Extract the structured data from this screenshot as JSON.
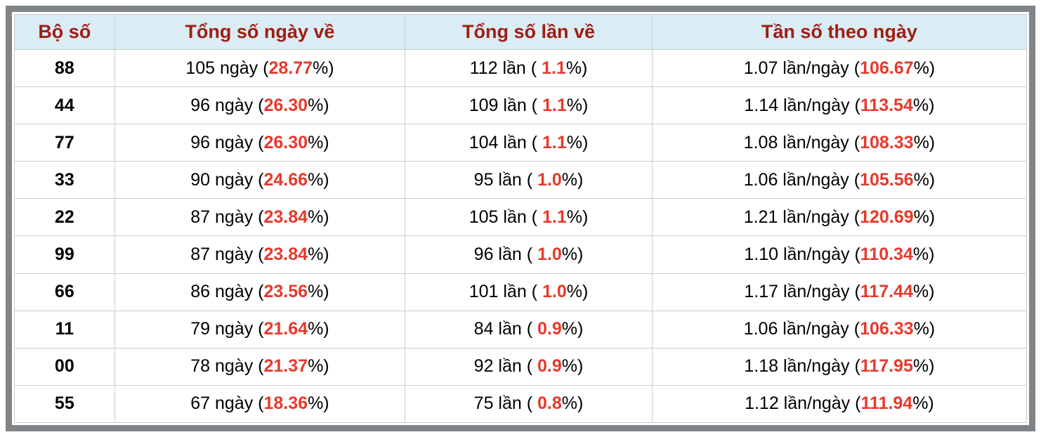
{
  "colors": {
    "frame_border": "#818487",
    "header_bg": "#daecf4",
    "header_text": "#9e1e12",
    "highlight_red": "#e8392b",
    "cell_border": "#cccccc"
  },
  "table": {
    "headers": [
      "Bộ số",
      "Tổng số ngày về",
      "Tổng số lần về",
      "Tần số theo ngày"
    ],
    "rows": [
      {
        "pair": "88",
        "days": {
          "pre": "105 ngày (",
          "red": "28.77",
          "post": "%)"
        },
        "times": {
          "pre": "112 lần ( ",
          "red": "1.1",
          "post": "%)"
        },
        "freq": {
          "pre": "1.07 lần/ngày (",
          "red": "106.67",
          "post": "%)"
        }
      },
      {
        "pair": "44",
        "days": {
          "pre": "96 ngày (",
          "red": "26.30",
          "post": "%)"
        },
        "times": {
          "pre": "109 lần ( ",
          "red": "1.1",
          "post": "%)"
        },
        "freq": {
          "pre": "1.14 lần/ngày (",
          "red": "113.54",
          "post": "%)"
        }
      },
      {
        "pair": "77",
        "days": {
          "pre": "96 ngày (",
          "red": "26.30",
          "post": "%)"
        },
        "times": {
          "pre": "104 lần ( ",
          "red": "1.1",
          "post": "%)"
        },
        "freq": {
          "pre": "1.08 lần/ngày (",
          "red": "108.33",
          "post": "%)"
        }
      },
      {
        "pair": "33",
        "days": {
          "pre": "90 ngày (",
          "red": "24.66",
          "post": "%)"
        },
        "times": {
          "pre": "95 lần ( ",
          "red": "1.0",
          "post": "%)"
        },
        "freq": {
          "pre": "1.06 lần/ngày (",
          "red": "105.56",
          "post": "%)"
        }
      },
      {
        "pair": "22",
        "days": {
          "pre": "87 ngày (",
          "red": "23.84",
          "post": "%)"
        },
        "times": {
          "pre": "105 lần ( ",
          "red": "1.1",
          "post": "%)"
        },
        "freq": {
          "pre": "1.21 lần/ngày (",
          "red": "120.69",
          "post": "%)"
        }
      },
      {
        "pair": "99",
        "days": {
          "pre": "87 ngày (",
          "red": "23.84",
          "post": "%)"
        },
        "times": {
          "pre": "96 lần ( ",
          "red": "1.0",
          "post": "%)"
        },
        "freq": {
          "pre": "1.10 lần/ngày (",
          "red": "110.34",
          "post": "%)"
        }
      },
      {
        "pair": "66",
        "days": {
          "pre": "86 ngày (",
          "red": "23.56",
          "post": "%)"
        },
        "times": {
          "pre": "101 lần ( ",
          "red": "1.0",
          "post": "%)"
        },
        "freq": {
          "pre": "1.17 lần/ngày (",
          "red": "117.44",
          "post": "%)"
        }
      },
      {
        "pair": "11",
        "days": {
          "pre": "79 ngày (",
          "red": "21.64",
          "post": "%)"
        },
        "times": {
          "pre": "84 lần ( ",
          "red": "0.9",
          "post": "%)"
        },
        "freq": {
          "pre": "1.06 lần/ngày (",
          "red": "106.33",
          "post": "%)"
        }
      },
      {
        "pair": "00",
        "days": {
          "pre": "78 ngày (",
          "red": "21.37",
          "post": "%)"
        },
        "times": {
          "pre": "92 lần ( ",
          "red": "0.9",
          "post": "%)"
        },
        "freq": {
          "pre": "1.18 lần/ngày (",
          "red": "117.95",
          "post": "%)"
        }
      },
      {
        "pair": "55",
        "days": {
          "pre": "67 ngày (",
          "red": "18.36",
          "post": "%)"
        },
        "times": {
          "pre": "75 lần ( ",
          "red": "0.8",
          "post": "%)"
        },
        "freq": {
          "pre": "1.12 lần/ngày (",
          "red": "111.94",
          "post": "%)"
        }
      }
    ]
  }
}
